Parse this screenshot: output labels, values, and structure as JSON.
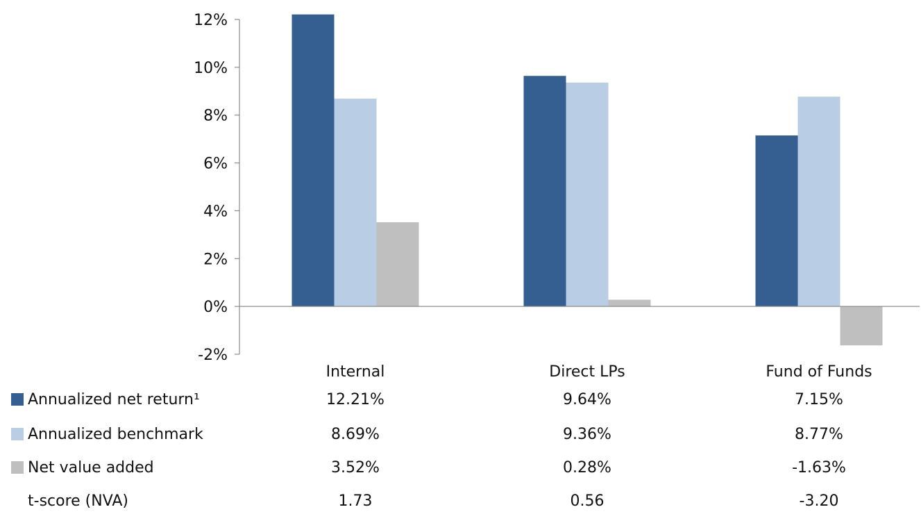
{
  "chart_data": {
    "type": "bar",
    "categories": [
      "Internal",
      "Direct LPs",
      "Fund of Funds"
    ],
    "series": [
      {
        "name": "Annualized net return¹",
        "values": [
          12.21,
          9.64,
          7.15
        ],
        "labels": [
          "12.21%",
          "9.64%",
          "7.15%"
        ],
        "color": "#365F91"
      },
      {
        "name": "Annualized benchmark",
        "values": [
          8.69,
          9.36,
          8.77
        ],
        "labels": [
          "8.69%",
          "9.36%",
          "8.77%"
        ],
        "color": "#B9CDE5"
      },
      {
        "name": "Net value added",
        "values": [
          3.52,
          0.28,
          -1.63
        ],
        "labels": [
          "3.52%",
          "0.28%",
          "-1.63%"
        ],
        "color": "#BFBFBF"
      }
    ],
    "extra_rows": [
      {
        "name": "t-score (NVA)",
        "values": [
          "1.73",
          "0.56",
          "-3.20"
        ]
      }
    ],
    "ylim": [
      -2,
      12
    ],
    "yticks": [
      -2,
      0,
      2,
      4,
      6,
      8,
      10,
      12
    ],
    "ytick_labels": [
      "-2%",
      "0%",
      "2%",
      "4%",
      "6%",
      "8%",
      "10%",
      "12%"
    ],
    "title": "",
    "xlabel": "",
    "ylabel": "",
    "legend": "data-table",
    "grid": false
  }
}
